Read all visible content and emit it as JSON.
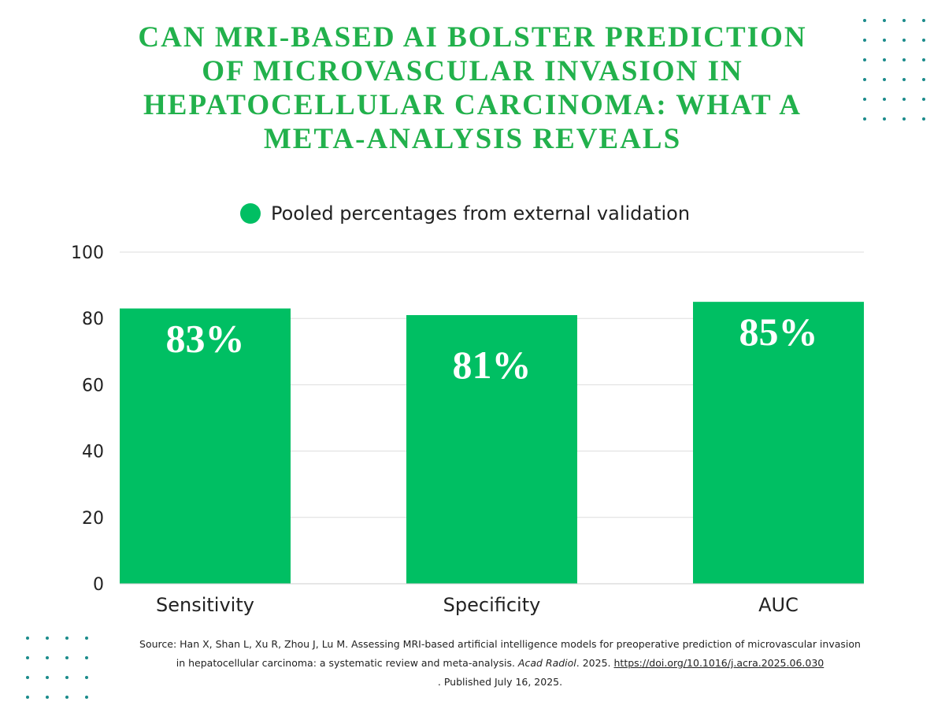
{
  "title": "CAN MRI-BASED AI BOLSTER PREDICTION OF MICROVASCULAR INVASION IN HEPATOCELLULAR CARCINOMA: WHAT A META-ANALYSIS REVEALS",
  "colors": {
    "title": "#22b14c",
    "bar": "#00bf63",
    "decor_dots": "#1b8b8b"
  },
  "chart_data": {
    "type": "bar",
    "categories": [
      "Sensitivity",
      "Specificity",
      "AUC"
    ],
    "series": [
      {
        "name": "Pooled percentages from external validation",
        "values": [
          83,
          81,
          85
        ]
      }
    ],
    "data_labels": [
      "83%",
      "81%",
      "85%"
    ],
    "ylim": [
      0,
      100
    ],
    "yticks": [
      0,
      20,
      40,
      60,
      80,
      100
    ],
    "grid": true,
    "legend": "top"
  },
  "source": {
    "prefix": "Source:  Han X, Shan L, Xu R, Zhou J, Lu M. Assessing MRI-based artificial intelligence models for preoperative prediction of microvascular invasion in hepatocellular carcinoma: a systematic review and meta-analysis. ",
    "journal": "Acad Radiol",
    "year": ". 2025. ",
    "doi": "https://doi.org/10.1016/j.acra.2025.06.030",
    "published": ". Published July 16, 2025."
  }
}
